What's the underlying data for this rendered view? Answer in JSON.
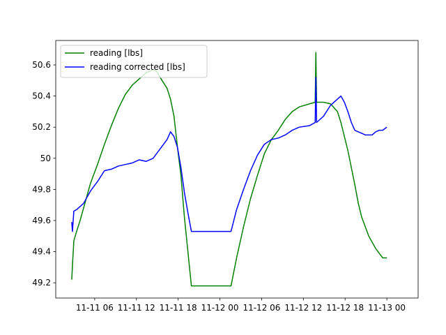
{
  "chart_data": {
    "type": "line",
    "x": [
      "11-11 02:42",
      "11-11 02:48",
      "11-11 03:00",
      "11-11 03:24",
      "11-11 03:54",
      "11-11 04:24",
      "11-11 05:24",
      "11-11 06:24",
      "11-11 07:24",
      "11-11 08:24",
      "11-11 09:24",
      "11-11 10:24",
      "11-11 11:24",
      "11-11 12:24",
      "11-11 13:24",
      "11-11 14:24",
      "11-11 14:54",
      "11-11 15:24",
      "11-11 16:24",
      "11-11 16:54",
      "11-11 17:24",
      "11-11 17:54",
      "11-11 18:24",
      "11-11 18:54",
      "11-11 19:24",
      "11-11 19:54",
      "11-11 20:24",
      "11-12 01:36",
      "11-12 02:24",
      "11-12 03:24",
      "11-12 04:24",
      "11-12 05:24",
      "11-12 06:24",
      "11-12 07:24",
      "11-12 08:24",
      "11-12 09:24",
      "11-12 10:24",
      "11-12 11:24",
      "11-12 12:54",
      "11-12 13:42",
      "11-12 13:48",
      "11-12 13:54",
      "11-12 14:54",
      "11-12 15:54",
      "11-12 16:54",
      "11-12 17:24",
      "11-12 17:54",
      "11-12 18:24",
      "11-12 18:54",
      "11-12 19:24",
      "11-12 19:54",
      "11-12 20:24",
      "11-12 20:54",
      "11-12 21:24",
      "11-12 21:54",
      "11-12 22:24",
      "11-12 22:54",
      "11-12 23:24",
      "11-13 00:00"
    ],
    "series": [
      {
        "name": "reading [lbs]",
        "color": "#008000",
        "values": [
          49.22,
          49.31,
          49.47,
          49.53,
          49.6,
          49.68,
          49.84,
          49.96,
          50.09,
          50.21,
          50.32,
          50.41,
          50.47,
          50.51,
          50.55,
          50.57,
          50.56,
          50.52,
          50.45,
          50.38,
          50.27,
          50.07,
          49.89,
          49.62,
          49.4,
          49.18,
          49.18,
          49.18,
          49.36,
          49.56,
          49.74,
          49.89,
          50.03,
          50.12,
          50.18,
          50.25,
          50.3,
          50.33,
          50.35,
          50.36,
          50.68,
          50.36,
          50.36,
          50.35,
          50.3,
          50.23,
          50.14,
          50.05,
          49.94,
          49.83,
          49.71,
          49.62,
          49.56,
          49.5,
          49.46,
          49.42,
          49.39,
          49.36,
          49.36
        ]
      },
      {
        "name": "reading corrected [lbs]",
        "color": "#0000ff",
        "values": [
          49.59,
          49.53,
          49.66,
          49.67,
          49.69,
          49.71,
          49.79,
          49.85,
          49.92,
          49.93,
          49.95,
          49.96,
          49.97,
          49.99,
          49.98,
          50.0,
          50.03,
          50.06,
          50.12,
          50.17,
          50.14,
          50.07,
          49.94,
          49.78,
          49.65,
          49.53,
          49.53,
          49.53,
          49.67,
          49.8,
          49.92,
          50.02,
          50.09,
          50.12,
          50.13,
          50.15,
          50.18,
          50.2,
          50.21,
          50.23,
          50.52,
          50.23,
          50.27,
          50.34,
          50.38,
          50.4,
          50.36,
          50.3,
          50.23,
          50.18,
          50.17,
          50.16,
          50.15,
          50.15,
          50.15,
          50.17,
          50.18,
          50.18,
          50.2
        ]
      }
    ],
    "xlim": [
      "11-11 00:24",
      "11-13 04:30"
    ],
    "xticks": [
      "11-11 06",
      "11-11 12",
      "11-11 18",
      "11-12 00",
      "11-12 06",
      "11-12 12",
      "11-12 18",
      "11-13 00"
    ],
    "ylim": [
      49.102,
      50.757
    ],
    "yticks": [
      49.2,
      49.4,
      49.6,
      49.8,
      50.0,
      50.2,
      50.4,
      50.6
    ],
    "legend": "upper left"
  }
}
